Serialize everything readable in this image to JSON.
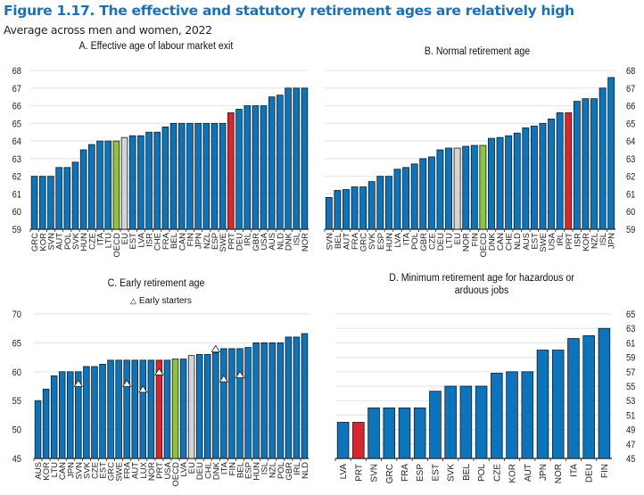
{
  "figure": {
    "title": "Figure 1.17. The effective and statutory retirement ages are relatively high",
    "subtitle": "Average across men and women, 2022"
  },
  "colors": {
    "default": "#0a75bd",
    "portugal": "#d9262e",
    "oecd": "#8cc43e",
    "eu": "#d4d4d4",
    "gridline": "#e6e6e6",
    "marker": "#ffffff"
  },
  "chart_data": [
    {
      "id": "A",
      "type": "bar",
      "title": "A. Effective age of labour market exit",
      "xlabel": "",
      "ylabel": "",
      "ylim": [
        59,
        68
      ],
      "yticks": [
        59,
        60,
        61,
        62,
        63,
        64,
        65,
        66,
        67,
        68
      ],
      "y_axis_side": "left",
      "grid": true,
      "categories": [
        "GRC",
        "KOR",
        "SVN",
        "AUT",
        "POL",
        "SVK",
        "HUN",
        "CZE",
        "ITA",
        "LTU",
        "OECD",
        "EU",
        "EST",
        "LVA",
        "ISR",
        "CHE",
        "FRA",
        "BEL",
        "CAN",
        "FIN",
        "JPN",
        "NZL",
        "ESP",
        "SWE",
        "PRT",
        "DEU",
        "IRL",
        "GBR",
        "USA",
        "AUS",
        "NLD",
        "DNK",
        "ISL",
        "NOR"
      ],
      "values": [
        62.0,
        62.0,
        62.0,
        62.5,
        62.5,
        62.8,
        63.5,
        63.8,
        64.0,
        64.0,
        64.0,
        64.2,
        64.3,
        64.3,
        64.5,
        64.5,
        64.8,
        65.0,
        65.0,
        65.0,
        65.0,
        65.0,
        65.0,
        65.0,
        65.6,
        65.8,
        66.0,
        66.0,
        66.0,
        66.5,
        66.6,
        67.0,
        67.0,
        67.0
      ]
    },
    {
      "id": "B",
      "type": "bar",
      "title": "B. Normal retirement age",
      "xlabel": "",
      "ylabel": "",
      "ylim": [
        59,
        68
      ],
      "yticks": [
        59,
        60,
        61,
        62,
        63,
        64,
        65,
        66,
        67,
        68
      ],
      "y_axis_side": "right",
      "grid": true,
      "categories": [
        "SVN",
        "BEL",
        "AUT",
        "FRA",
        "GRC",
        "SVK",
        "ESP",
        "HUN",
        "LVA",
        "ITA",
        "POL",
        "GBR",
        "CZE",
        "DEU",
        "LTU",
        "EU",
        "NOR",
        "FIN",
        "OECD",
        "DNK",
        "CAN",
        "CHE",
        "NLD",
        "AUS",
        "EST",
        "SWE",
        "USA",
        "IRL",
        "PRT",
        "ISR",
        "KOR",
        "NZL",
        "ISL",
        "JPN"
      ],
      "values": [
        60.8,
        61.2,
        61.25,
        61.4,
        61.4,
        61.7,
        62.0,
        62.0,
        62.4,
        62.5,
        62.7,
        63.0,
        63.1,
        63.5,
        63.6,
        63.6,
        63.7,
        63.75,
        63.75,
        64.15,
        64.2,
        64.3,
        64.45,
        64.75,
        64.85,
        65.0,
        65.25,
        65.6,
        65.6,
        66.25,
        66.4,
        66.4,
        67.0,
        67.6
      ]
    },
    {
      "id": "C",
      "type": "bar",
      "title": "C. Early retirement age",
      "legend": [
        {
          "name": "Early starters",
          "marker": "triangle"
        }
      ],
      "legend_position": "top-center",
      "xlabel": "",
      "ylabel": "",
      "ylim": [
        45,
        70
      ],
      "yticks": [
        45,
        50,
        55,
        60,
        65,
        70
      ],
      "y_axis_side": "left",
      "grid": true,
      "categories": [
        "AUS",
        "KOR",
        "LTU",
        "CAN",
        "JPN",
        "SVN",
        "SVK",
        "CZE",
        "EST",
        "GRC",
        "SWE",
        "FRA",
        "AUT",
        "LUX",
        "NOR",
        "PRT",
        "USA",
        "OECD",
        "LVA",
        "EU",
        "DEU",
        "CHL",
        "DNK",
        "ITA",
        "FIN",
        "BEL",
        "ESP",
        "HUN",
        "ISL",
        "NZL",
        "POL",
        "GBR",
        "IRL",
        "NLD"
      ],
      "values": [
        55.0,
        57.0,
        59.3,
        60.0,
        60.0,
        60.0,
        60.9,
        60.9,
        61.3,
        62.0,
        62.0,
        62.0,
        62.0,
        62.0,
        62.0,
        62.0,
        62.0,
        62.2,
        62.2,
        62.8,
        63.0,
        63.0,
        63.3,
        64.0,
        64.0,
        64.0,
        64.2,
        65.0,
        65.0,
        65.0,
        65.0,
        66.0,
        66.0,
        66.6
      ],
      "series": [
        {
          "name": "Early starters",
          "type": "marker",
          "values": [
            null,
            null,
            null,
            null,
            null,
            58.0,
            null,
            null,
            null,
            null,
            null,
            58.0,
            null,
            57.0,
            null,
            60.0,
            null,
            null,
            null,
            null,
            null,
            null,
            64.0,
            58.8,
            null,
            59.5,
            null,
            null,
            null,
            null,
            null,
            null,
            null,
            null
          ]
        }
      ]
    },
    {
      "id": "D",
      "type": "bar",
      "title": "D. Minimum retirement age for hazardous or arduous jobs",
      "xlabel": "",
      "ylabel": "",
      "ylim": [
        45,
        65
      ],
      "yticks": [
        45,
        47,
        49,
        51,
        53,
        55,
        57,
        59,
        61,
        63,
        65
      ],
      "y_axis_side": "right",
      "grid": true,
      "categories": [
        "LVA",
        "PRT",
        "SVN",
        "GRC",
        "FRA",
        "ESP",
        "EST",
        "SVK",
        "BEL",
        "POL",
        "CZE",
        "KOR",
        "AUT",
        "JPN",
        "NOR",
        "ITA",
        "DEU",
        "FIN"
      ],
      "values": [
        50.0,
        50.0,
        52.0,
        52.0,
        52.0,
        52.0,
        54.3,
        55.0,
        55.0,
        55.0,
        56.8,
        57.0,
        57.0,
        60.0,
        60.0,
        61.6,
        62.0,
        63.0
      ]
    }
  ]
}
